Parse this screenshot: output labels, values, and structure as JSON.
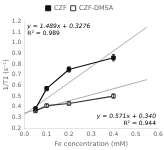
{
  "chart_data": {
    "type": "line",
    "xlabel": "Fe concentration (mM)",
    "ylabel": "1/T1 (s⁻¹)",
    "annotations": [
      "y = 1.489x + 0.3276",
      "R² = 0.989",
      "y = 0.571x + 0.340",
      "R² = 0.944"
    ],
    "series": [
      {
        "name": "CZF",
        "x": [
          0.05,
          0.1,
          0.2,
          0.4
        ],
        "values": [
          0.38,
          0.57,
          0.75,
          0.86
        ],
        "yerr": [
          0.02,
          0.02,
          0.025,
          0.03
        ],
        "color": "#111111",
        "marker": "square",
        "line_style": "solid"
      },
      {
        "name": "CZF-DMSA",
        "x": [
          0.05,
          0.1,
          0.2,
          0.4
        ],
        "values": [
          0.36,
          0.41,
          0.43,
          0.5
        ],
        "yerr": [
          0.01,
          0.015,
          0.015,
          0.02
        ],
        "color": "#333333",
        "marker": "open_square",
        "line_style": "solid"
      },
      {
        "x": [
          0.0,
          0.55
        ],
        "values": [
          0.3276,
          1.14655
        ],
        "color": "#999999",
        "marker": "none",
        "line_style": "solid"
      },
      {
        "x": [
          0.0,
          0.55
        ],
        "values": [
          0.34,
          0.65405
        ],
        "color": "#999999",
        "marker": "none",
        "line_style": "solid"
      }
    ],
    "xlim": [
      0.0,
      0.6
    ],
    "xticks": [
      {
        "value": 0.0,
        "label": "0.0"
      },
      0.1,
      0.2,
      0.3,
      0.4,
      0.5,
      0.6
    ],
    "ylim": [
      0.2,
      1.2
    ],
    "yticks": [
      0.2,
      0.3,
      0.4,
      0.5,
      0.6,
      0.7,
      0.8,
      0.9,
      {
        "value": 1.0,
        "label": "1.0"
      },
      1.1,
      1.2
    ],
    "grid": false,
    "legend": "top"
  }
}
